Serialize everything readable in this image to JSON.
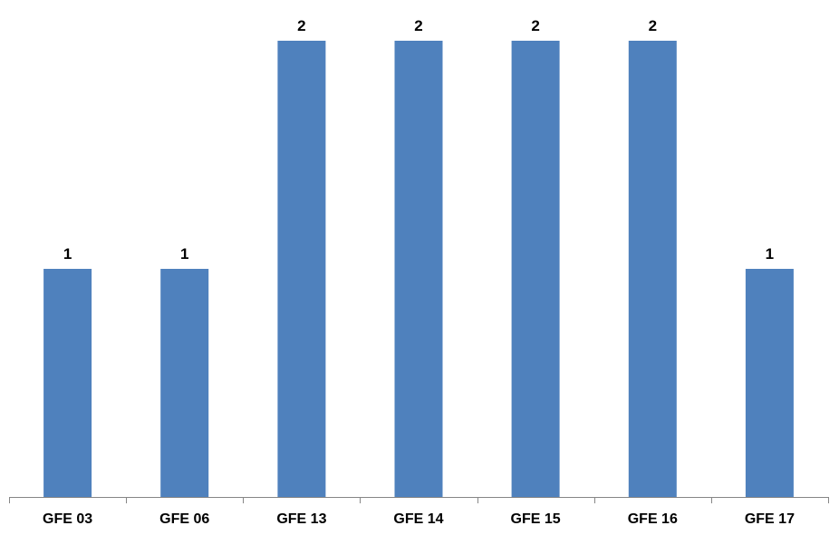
{
  "chart_data": {
    "type": "bar",
    "title": "",
    "xlabel": "",
    "ylabel": "",
    "categories": [
      "GFE 03",
      "GFE 06",
      "GFE 13",
      "GFE 14",
      "GFE 15",
      "GFE 16",
      "GFE 17"
    ],
    "values": [
      1,
      1,
      2,
      2,
      2,
      2,
      1
    ],
    "data_labels": [
      "1",
      "1",
      "2",
      "2",
      "2",
      "2",
      "1"
    ],
    "ylim": [
      0,
      2
    ],
    "grid": false,
    "legend": "none",
    "colors": {
      "bar": "#4f81bd",
      "axis": "#868686",
      "text": "#000000"
    }
  }
}
